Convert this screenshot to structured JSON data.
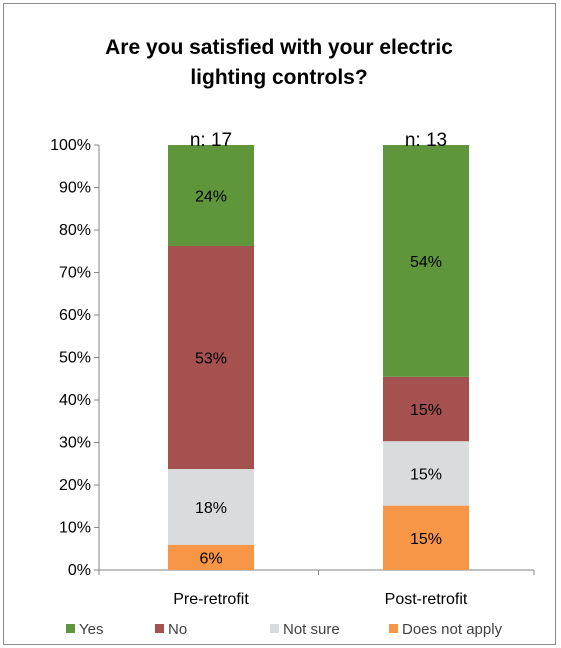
{
  "chart_data": {
    "type": "bar",
    "stacked": true,
    "title": "Are you satisfied with your electric lighting controls?",
    "title_lines": [
      "Are you satisfied with your electric",
      "lighting controls?"
    ],
    "categories": [
      "Pre-retrofit",
      "Post-retrofit"
    ],
    "n_labels": [
      "n: 17",
      "n: 13"
    ],
    "series": [
      {
        "name": "Does not apply",
        "color": "#f79646",
        "values": [
          6,
          15
        ],
        "labels": [
          "6%",
          "15%"
        ]
      },
      {
        "name": "Not sure",
        "color": "#d9dcdc",
        "values": [
          18,
          15
        ],
        "labels": [
          "18%",
          "15%"
        ]
      },
      {
        "name": "No",
        "color": "#a5514f",
        "values": [
          53,
          15
        ],
        "labels": [
          "53%",
          "15%"
        ]
      },
      {
        "name": "Yes",
        "color": "#5f953b",
        "values": [
          24,
          54
        ],
        "labels": [
          "24%",
          "54%"
        ]
      }
    ],
    "legend_order": [
      "Yes",
      "No",
      "Not sure",
      "Does not apply"
    ],
    "ylim": [
      0,
      100
    ],
    "yticks": [
      "0%",
      "10%",
      "20%",
      "30%",
      "40%",
      "50%",
      "60%",
      "70%",
      "80%",
      "90%",
      "100%"
    ],
    "legend_position": "bottom",
    "grid": false
  }
}
